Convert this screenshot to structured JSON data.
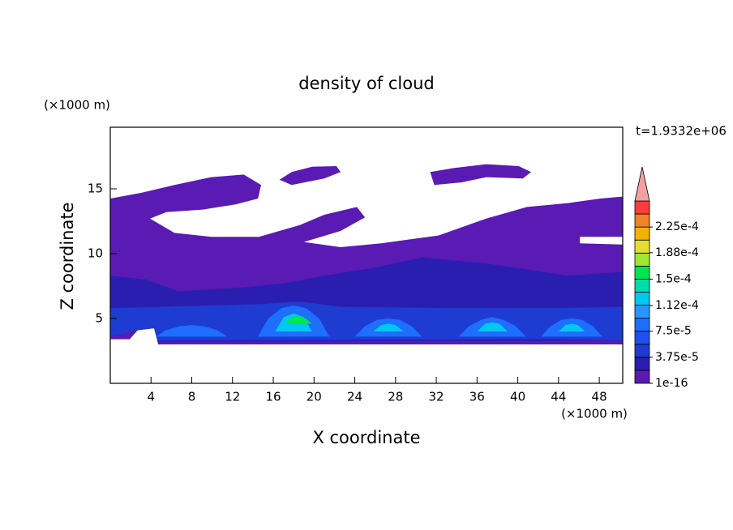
{
  "chart_data": {
    "type": "contour",
    "title": "density of cloud",
    "xlabel": "X coordinate",
    "ylabel": "Z coordinate",
    "x_unit": "(×1000 m)",
    "y_unit": "(×1000 m)",
    "annotation": "t=1.9332e+06",
    "xlim": [
      0,
      50.3
    ],
    "ylim": [
      0,
      19.75
    ],
    "xticks": [
      4,
      8,
      12,
      16,
      20,
      24,
      28,
      32,
      36,
      40,
      44,
      48
    ],
    "yticks": [
      5,
      10,
      15
    ],
    "colorbar": {
      "levels": [
        1e-16,
        1.875e-05,
        3.75e-05,
        5.625e-05,
        7.5e-05,
        9.375e-05,
        0.0001125,
        0.00013125,
        0.00015,
        0.00016875,
        0.0001875,
        0.00020625,
        0.000225,
        0.00024375
      ],
      "colors": [
        "#5a1ab4",
        "#2a1eb0",
        "#1e3cd2",
        "#1e50f0",
        "#1e6eff",
        "#2896ff",
        "#00c8f0",
        "#00dcaa",
        "#00e650",
        "#a0e632",
        "#e6dc32",
        "#f0b400",
        "#f08228",
        "#fa3c3c"
      ],
      "over_color": "#f4a0a0",
      "ticks": [
        {
          "value": 1e-16,
          "label": "1e-16"
        },
        {
          "value": 3.75e-05,
          "label": "3.75e-5"
        },
        {
          "value": 7.5e-05,
          "label": "7.5e-5"
        },
        {
          "value": 0.000112,
          "label": "1.12e-4"
        },
        {
          "value": 0.00015,
          "label": "1.5e-4"
        },
        {
          "value": 0.000188,
          "label": "1.88e-4"
        },
        {
          "value": 0.000225,
          "label": "2.25e-4"
        }
      ]
    },
    "regions": [
      {
        "value": 1e-16,
        "x": [
          0,
          3.1,
          6.3,
          9.9,
          13.1,
          14.8,
          14.5,
          12.3,
          9.1,
          5.5,
          3.9,
          6.3,
          9.9,
          14.6,
          18.6,
          21,
          24.2,
          25,
          22.6,
          19,
          22.6,
          26.6,
          32.2,
          36.9,
          40.9,
          44.9,
          48.1,
          50.3,
          50.3,
          46.1,
          46.1,
          50.3,
          50.3,
          4.7,
          4.3,
          2.7,
          1.9,
          0
        ],
        "z": [
          14.25,
          14.7,
          15.3,
          15.9,
          16.1,
          15.3,
          14.25,
          13.8,
          13.4,
          13.2,
          12.7,
          11.6,
          11.3,
          11.3,
          12.2,
          13,
          13.6,
          12.8,
          11.75,
          10.9,
          10.5,
          10.8,
          11.4,
          12.7,
          13.6,
          13.9,
          14.25,
          14.4,
          11.3,
          11.3,
          10.8,
          10.7,
          3,
          3,
          4.25,
          4.1,
          3.4,
          3.4
        ]
      },
      {
        "value": 1e-16,
        "x": [
          16.6,
          17.8,
          19.8,
          22.2,
          22.6,
          21,
          17.8
        ],
        "z": [
          15.7,
          16.3,
          16.7,
          16.75,
          16.3,
          15.8,
          15.3
        ]
      },
      {
        "value": 1e-16,
        "x": [
          31.4,
          33.7,
          36.9,
          40.1,
          41.3,
          40.5,
          36.9,
          34.5,
          31.8
        ],
        "z": [
          16.3,
          16.6,
          16.9,
          16.75,
          16.3,
          15.8,
          15.9,
          15.5,
          15.3
        ]
      },
      {
        "value": 1.875e-05,
        "x": [
          0,
          3.5,
          6.7,
          13.1,
          17,
          21,
          25.8,
          30.6,
          36.9,
          44.9,
          50.3,
          50.3,
          4.7,
          4.3,
          2.7,
          0
        ],
        "z": [
          8.3,
          8,
          7.1,
          7.4,
          7.7,
          8.3,
          8.9,
          9.7,
          9.25,
          8.3,
          8.6,
          3.3,
          3.2,
          4.25,
          4.1,
          3.6
        ]
      },
      {
        "value": 3.75e-05,
        "x": [
          0,
          5.1,
          14.6,
          18.6,
          22.6,
          33.7,
          43.3,
          50.3,
          50.3,
          43.3,
          4.7,
          4.3,
          2.7,
          0
        ],
        "z": [
          5.8,
          5.9,
          6.1,
          6.3,
          5.9,
          5.8,
          5.8,
          5.9,
          3.3,
          3.4,
          3.3,
          4.25,
          4.1,
          3.6
        ]
      },
      {
        "value": 7.5e-05,
        "x": [
          14.5,
          15.5,
          16.8,
          18,
          19.2,
          20.5,
          21.5
        ],
        "z": [
          3.6,
          5.0,
          5.8,
          6.0,
          5.8,
          5.0,
          3.6
        ]
      },
      {
        "value": 7.5e-05,
        "x": [
          24,
          25,
          26.2,
          27.3,
          28.4,
          29.6,
          30.6
        ],
        "z": [
          3.6,
          4.4,
          4.9,
          5.0,
          4.9,
          4.4,
          3.6
        ]
      },
      {
        "value": 7.5e-05,
        "x": [
          34.2,
          35.2,
          36.4,
          37.5,
          38.6,
          39.8,
          40.8
        ],
        "z": [
          3.6,
          4.4,
          4.9,
          5.1,
          4.9,
          4.4,
          3.6
        ]
      },
      {
        "value": 7.5e-05,
        "x": [
          42.3,
          43.2,
          44.3,
          45.3,
          46.3,
          47.4,
          48.3
        ],
        "z": [
          3.6,
          4.4,
          4.9,
          5.0,
          4.9,
          4.4,
          3.6
        ]
      },
      {
        "value": 7.5e-05,
        "x": [
          4.5,
          5.5,
          6.8,
          8,
          9.2,
          10.5,
          11.5
        ],
        "z": [
          3.6,
          4.1,
          4.4,
          4.5,
          4.4,
          4.1,
          3.6
        ]
      },
      {
        "value": 0.0001125,
        "x": [
          16.2,
          17,
          18,
          19,
          19.8
        ],
        "z": [
          4.0,
          5.1,
          5.4,
          5.1,
          4.0
        ]
      },
      {
        "value": 0.0001125,
        "x": [
          25.8,
          26.6,
          27.3,
          28,
          28.8
        ],
        "z": [
          4.0,
          4.5,
          4.6,
          4.5,
          4.0
        ]
      },
      {
        "value": 0.0001125,
        "x": [
          36,
          36.8,
          37.5,
          38.2,
          39
        ],
        "z": [
          4.0,
          4.6,
          4.7,
          4.6,
          4.0
        ]
      },
      {
        "value": 0.0001125,
        "x": [
          44,
          44.7,
          45.3,
          45.9,
          46.6
        ],
        "z": [
          4.0,
          4.5,
          4.6,
          4.5,
          4.0
        ]
      },
      {
        "value": 0.00015,
        "x": [
          17.2,
          17.8,
          18.5,
          19.2,
          19.8
        ],
        "z": [
          4.6,
          5.1,
          5.2,
          5.0,
          4.6
        ]
      }
    ]
  }
}
